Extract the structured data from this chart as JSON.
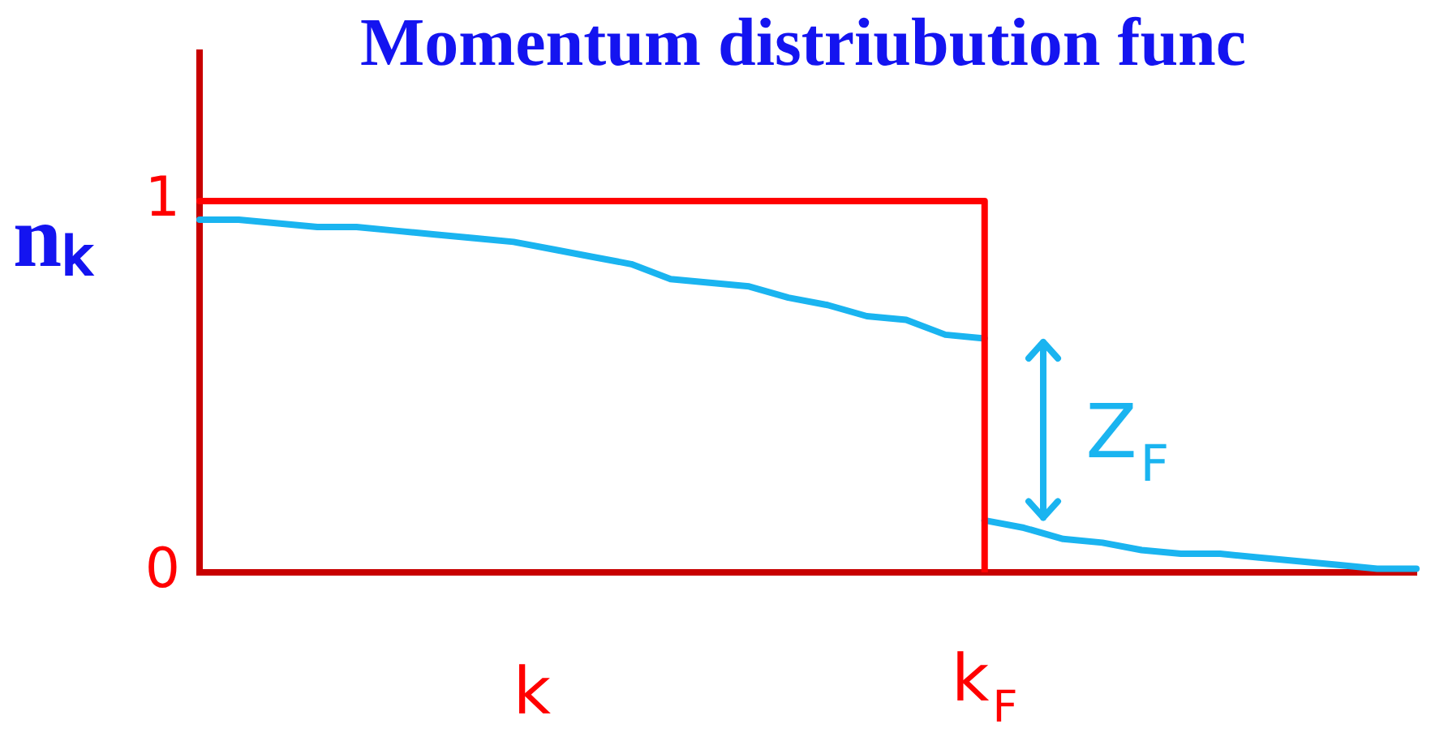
{
  "chart_data": {
    "type": "line",
    "title": "Momentum distriubution func",
    "xlabel": "k",
    "ylabel": "nₖ",
    "annotations": [
      {
        "text": "Z$_{F}$",
        "x": "k$_{F}$",
        "y": 0.38
      }
    ],
    "categories": [
      null,
      null,
      null,
      null,
      null,
      null,
      null,
      null,
      null,
      null,
      null,
      null,
      null,
      null,
      null,
      null,
      null,
      null,
      null,
      null,
      "k$_{F}$",
      null,
      null,
      null,
      null,
      null,
      null,
      null,
      null,
      null,
      null,
      null
    ],
    "series": [
      {
        "type": "step",
        "color": "#ff0000",
        "values": [
          1,
          1,
          1,
          1,
          1,
          1,
          1,
          1,
          1,
          1,
          1,
          1,
          1,
          1,
          1,
          1,
          1,
          1,
          1,
          1,
          0,
          null,
          null,
          null,
          null,
          null,
          null,
          null,
          null,
          null,
          null,
          null
        ]
      },
      {
        "color": "#1ab4f0",
        "values": [
          0.95,
          0.95,
          0.94,
          0.93,
          0.93,
          0.92,
          0.91,
          0.9,
          0.89,
          0.87,
          0.85,
          0.83,
          0.79,
          0.78,
          0.77,
          0.74,
          0.72,
          0.69,
          0.68,
          0.64,
          0.63,
          null,
          null,
          null,
          null,
          null,
          null,
          null,
          null,
          null,
          null,
          null
        ]
      },
      {
        "color": "#1ab4f0",
        "values": [
          null,
          null,
          null,
          null,
          null,
          null,
          null,
          null,
          null,
          null,
          null,
          null,
          null,
          null,
          null,
          null,
          null,
          null,
          null,
          null,
          0.14,
          0.12,
          0.09,
          0.08,
          0.06,
          0.05,
          0.05,
          0.04,
          0.03,
          0.02,
          0.01,
          0.01
        ]
      }
    ],
    "ylim": [
      0,
      1.4
    ],
    "yticks": [
      0,
      1
    ],
    "marker": "none",
    "legend": false
  }
}
